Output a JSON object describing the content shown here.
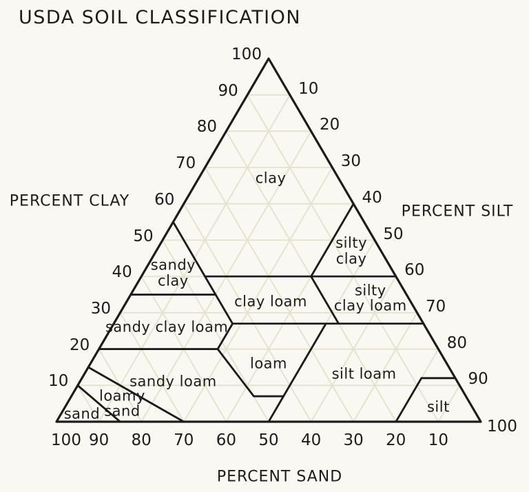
{
  "colors": {
    "background": "#faf8f2",
    "ink": "#1c1c1c",
    "grid": "#e4e3cf"
  },
  "chart_data": {
    "type": "ternary-soil-texture-diagram",
    "title": "USDA SOIL CLASSIFICATION",
    "grid": {
      "show": true,
      "interval": 10
    },
    "axes": {
      "clay": {
        "label": "PERCENT CLAY",
        "side": "left",
        "ticks": [
          100,
          90,
          80,
          70,
          60,
          50,
          40,
          30,
          20,
          10
        ]
      },
      "silt": {
        "label": "PERCENT SILT",
        "side": "right",
        "ticks": [
          10,
          20,
          30,
          40,
          50,
          60,
          70,
          80,
          90,
          100
        ]
      },
      "sand": {
        "label": "PERCENT SAND",
        "side": "bottom",
        "ticks": [
          100,
          90,
          80,
          70,
          60,
          50,
          40,
          30,
          20,
          10
        ]
      }
    },
    "outline_clay_silt_sand": [
      [
        100,
        0,
        0
      ],
      [
        0,
        0,
        100
      ],
      [
        0,
        100,
        0
      ]
    ],
    "regions": [
      {
        "name": "clay",
        "label": [
          "clay"
        ],
        "label_at": [
          67,
          17,
          16
        ],
        "vertices": [
          [
            100,
            0,
            0
          ],
          [
            60,
            40,
            0
          ],
          [
            40,
            40,
            20
          ],
          [
            40,
            15,
            45
          ],
          [
            55,
            0,
            45
          ]
        ]
      },
      {
        "name": "silty-clay",
        "label": [
          "silty",
          "clay"
        ],
        "label_at": [
          47,
          46,
          7
        ],
        "vertices": [
          [
            60,
            40,
            0
          ],
          [
            40,
            60,
            0
          ],
          [
            40,
            40,
            20
          ]
        ]
      },
      {
        "name": "sandy-clay",
        "label": [
          "sandy",
          "clay"
        ],
        "label_at": [
          41,
          7,
          52
        ],
        "vertices": [
          [
            55,
            0,
            45
          ],
          [
            35,
            0,
            65
          ],
          [
            35,
            20,
            45
          ]
        ]
      },
      {
        "name": "silty-clay-loam",
        "label": [
          "silty",
          "clay loam"
        ],
        "label_at": [
          34,
          57,
          9
        ],
        "vertices": [
          [
            40,
            60,
            0
          ],
          [
            27,
            73,
            0
          ],
          [
            27,
            53,
            20
          ],
          [
            40,
            40,
            20
          ]
        ]
      },
      {
        "name": "clay-loam",
        "label": [
          "clay loam"
        ],
        "label_at": [
          33,
          34,
          33
        ],
        "vertices": [
          [
            40,
            40,
            20
          ],
          [
            27,
            53,
            20
          ],
          [
            27,
            28,
            45
          ],
          [
            40,
            15,
            45
          ]
        ]
      },
      {
        "name": "sandy-clay-loam",
        "label": [
          "sandy clay loam"
        ],
        "label_at": [
          26,
          13,
          61
        ],
        "vertices": [
          [
            35,
            0,
            65
          ],
          [
            35,
            20,
            45
          ],
          [
            27,
            28,
            45
          ],
          [
            20,
            28,
            52
          ],
          [
            20,
            0,
            80
          ]
        ]
      },
      {
        "name": "loam",
        "label": [
          "loam"
        ],
        "label_at": [
          16,
          42,
          42
        ],
        "vertices": [
          [
            27,
            28,
            45
          ],
          [
            27,
            50,
            23
          ],
          [
            7,
            50,
            43
          ],
          [
            7,
            43,
            50
          ],
          [
            20,
            28,
            52
          ]
        ]
      },
      {
        "name": "silt-loam",
        "label": [
          "silt loam"
        ],
        "label_at": [
          13,
          66,
          21
        ],
        "vertices": [
          [
            27,
            50,
            23
          ],
          [
            27,
            73,
            0
          ],
          [
            12,
            88,
            0
          ],
          [
            12,
            80,
            8
          ],
          [
            0,
            80,
            20
          ],
          [
            0,
            50,
            50
          ],
          [
            7,
            50,
            43
          ]
        ]
      },
      {
        "name": "silt",
        "label": [
          "silt"
        ],
        "label_at": [
          4,
          88,
          8
        ],
        "vertices": [
          [
            12,
            88,
            0
          ],
          [
            12,
            80,
            8
          ],
          [
            0,
            80,
            20
          ],
          [
            0,
            100,
            0
          ]
        ]
      },
      {
        "name": "sandy-loam",
        "label": [
          "sandy loam"
        ],
        "label_at": [
          11,
          22,
          67
        ],
        "vertices": [
          [
            20,
            0,
            80
          ],
          [
            20,
            28,
            52
          ],
          [
            7,
            43,
            50
          ],
          [
            7,
            50,
            43
          ],
          [
            0,
            50,
            50
          ],
          [
            0,
            30,
            70
          ],
          [
            15,
            0,
            85
          ]
        ]
      },
      {
        "name": "loamy-sand",
        "label": [
          "loamy",
          "sand"
        ],
        "label_at": [
          5,
          13,
          82
        ],
        "vertices": [
          [
            15,
            0,
            85
          ],
          [
            0,
            30,
            70
          ],
          [
            0,
            15,
            85
          ],
          [
            10,
            0,
            90
          ]
        ]
      },
      {
        "name": "sand",
        "label": [
          "sand"
        ],
        "label_at": [
          2,
          5,
          93
        ],
        "vertices": [
          [
            10,
            0,
            90
          ],
          [
            0,
            15,
            85
          ],
          [
            0,
            0,
            100
          ]
        ]
      }
    ]
  }
}
